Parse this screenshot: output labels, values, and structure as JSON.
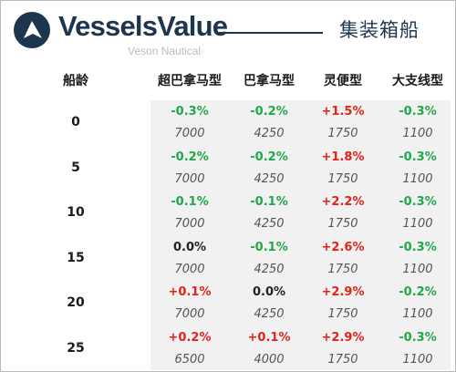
{
  "brand": {
    "name": "VesselsValue",
    "sub": "Veson Nautical"
  },
  "title": "集装箱船",
  "columns": {
    "age": "船龄",
    "c1": "超巴拿马型",
    "c2": "巴拿马型",
    "c3": "灵便型",
    "c4": "大支线型"
  },
  "colors": {
    "positive": "#e2231a",
    "negative": "#21a84a",
    "neutral": "#222222",
    "brand": "#1e3550"
  },
  "rows": [
    {
      "age": "0",
      "c1": {
        "pct": "-0.3%",
        "val": "7000"
      },
      "c2": {
        "pct": "-0.2%",
        "val": "4250"
      },
      "c3": {
        "pct": "+1.5%",
        "val": "1750"
      },
      "c4": {
        "pct": "-0.3%",
        "val": "1100"
      }
    },
    {
      "age": "5",
      "c1": {
        "pct": "-0.2%",
        "val": "7000"
      },
      "c2": {
        "pct": "-0.2%",
        "val": "4250"
      },
      "c3": {
        "pct": "+1.8%",
        "val": "1750"
      },
      "c4": {
        "pct": "-0.3%",
        "val": "1100"
      }
    },
    {
      "age": "10",
      "c1": {
        "pct": "-0.1%",
        "val": "7000"
      },
      "c2": {
        "pct": "-0.1%",
        "val": "4250"
      },
      "c3": {
        "pct": "+2.2%",
        "val": "1750"
      },
      "c4": {
        "pct": "-0.3%",
        "val": "1100"
      }
    },
    {
      "age": "15",
      "c1": {
        "pct": "0.0%",
        "val": "7000"
      },
      "c2": {
        "pct": "-0.1%",
        "val": "4250"
      },
      "c3": {
        "pct": "+2.6%",
        "val": "1750"
      },
      "c4": {
        "pct": "-0.3%",
        "val": "1100"
      }
    },
    {
      "age": "20",
      "c1": {
        "pct": "+0.1%",
        "val": "7000"
      },
      "c2": {
        "pct": "0.0%",
        "val": "4250"
      },
      "c3": {
        "pct": "+2.9%",
        "val": "1750"
      },
      "c4": {
        "pct": "-0.2%",
        "val": "1100"
      }
    },
    {
      "age": "25",
      "c1": {
        "pct": "+0.2%",
        "val": "6500"
      },
      "c2": {
        "pct": "+0.1%",
        "val": "4000"
      },
      "c3": {
        "pct": "+2.9%",
        "val": "1750"
      },
      "c4": {
        "pct": "-0.3%",
        "val": "1100"
      }
    }
  ]
}
